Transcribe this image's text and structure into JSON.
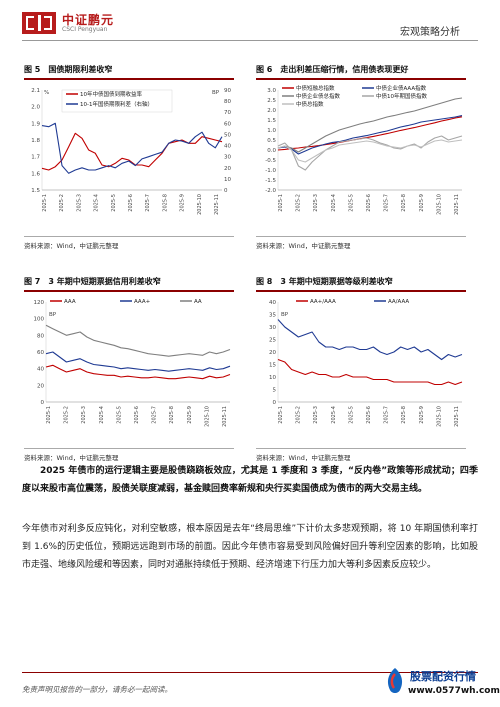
{
  "header": {
    "brand_cn": "中证鹏元",
    "brand_en": "CSCI Pengyuan",
    "section": "宏观策略分析"
  },
  "figures": [
    {
      "num": "图 5",
      "title": "国债期限利差收窄",
      "source": "资料来源：Wind，中证鹏元整理",
      "chart_data": {
        "type": "line",
        "x_ticks": [
          "2025-1",
          "2025-2",
          "2025-3",
          "2025-4",
          "2025-5",
          "2025-6",
          "2025-7",
          "2025-8",
          "2025-9",
          "2025-10",
          "2025-11"
        ],
        "left_unit": "%",
        "right_unit": "BP",
        "ylim_left": [
          1.5,
          2.1
        ],
        "ylim_right": [
          0,
          90
        ],
        "yticks_left": [
          "2.1",
          "2.0",
          "1.9",
          "1.8",
          "1.7",
          "1.6",
          "1.5"
        ],
        "yticks_right": [
          "90",
          "80",
          "70",
          "60",
          "50",
          "40",
          "30",
          "20",
          "10",
          "0"
        ],
        "series": [
          {
            "name": "10年中债国债到期收益率",
            "axis": "left",
            "color": "#c00000",
            "values": [
              1.63,
              1.62,
              1.64,
              1.68,
              1.76,
              1.84,
              1.81,
              1.74,
              1.72,
              1.65,
              1.64,
              1.66,
              1.69,
              1.68,
              1.65,
              1.65,
              1.64,
              1.68,
              1.72,
              1.78,
              1.79,
              1.8,
              1.78,
              1.78,
              1.82,
              1.81,
              1.8,
              1.79
            ]
          },
          {
            "name": "10-1年国债期限利差（右轴）",
            "axis": "right",
            "color": "#1f3a93",
            "values": [
              58,
              57,
              60,
              22,
              15,
              18,
              20,
              18,
              18,
              20,
              22,
              20,
              24,
              26,
              22,
              28,
              30,
              32,
              34,
              42,
              45,
              44,
              42,
              48,
              52,
              42,
              38,
              48
            ]
          }
        ]
      }
    },
    {
      "num": "图 6",
      "title": "走出利差压缩行情，信用债表现更好",
      "source": "资料来源：Wind，中证鹏元整理",
      "chart_data": {
        "type": "line",
        "x_ticks": [
          "2025-1",
          "2025-2",
          "2025-3",
          "2025-4",
          "2025-5",
          "2025-6",
          "2025-7",
          "2025-8",
          "2025-9",
          "2025-10",
          "2025-11"
        ],
        "ylim": [
          -2.0,
          3.0
        ],
        "yticks": [
          "3.0",
          "2.5",
          "2.0",
          "1.5",
          "1.0",
          "0.5",
          "0.0",
          "-0.5",
          "-1.0",
          "-1.5",
          "-2.0"
        ],
        "series": [
          {
            "name": "中债短融总指数",
            "color": "#c00000",
            "values": [
              0.0,
              0.03,
              0.07,
              0.1,
              0.15,
              0.18,
              0.22,
              0.27,
              0.32,
              0.38,
              0.44,
              0.5,
              0.56,
              0.62,
              0.68,
              0.75,
              0.82,
              0.9,
              0.98,
              1.05,
              1.12,
              1.2,
              1.28,
              1.36,
              1.45,
              1.52,
              1.6,
              1.66
            ]
          },
          {
            "name": "中债企业债AAA指数",
            "color": "#1f3a93",
            "values": [
              0.1,
              0.15,
              0.05,
              -0.2,
              -0.05,
              0.1,
              0.2,
              0.3,
              0.38,
              0.42,
              0.5,
              0.6,
              0.66,
              0.72,
              0.8,
              0.88,
              0.95,
              1.05,
              1.15,
              1.22,
              1.3,
              1.4,
              1.45,
              1.5,
              1.55,
              1.6,
              1.65,
              1.72
            ]
          },
          {
            "name": "中债企业债总指数",
            "color": "#7f7f7f",
            "values": [
              0.1,
              0.2,
              0.1,
              -0.1,
              0.1,
              0.3,
              0.5,
              0.7,
              0.85,
              1.0,
              1.1,
              1.2,
              1.3,
              1.38,
              1.45,
              1.55,
              1.65,
              1.72,
              1.8,
              1.88,
              1.95,
              2.05,
              2.15,
              2.25,
              2.35,
              2.45,
              2.55,
              2.6
            ]
          },
          {
            "name": "中债10年期国债指数",
            "color": "#a6a6a6",
            "values": [
              0.2,
              0.35,
              0.0,
              -0.8,
              -1.0,
              -0.6,
              -0.3,
              0.0,
              0.2,
              0.4,
              0.45,
              0.5,
              0.55,
              0.6,
              0.5,
              0.35,
              0.25,
              0.1,
              0.05,
              0.2,
              0.3,
              0.1,
              0.4,
              0.6,
              0.7,
              0.5,
              0.6,
              0.7
            ]
          },
          {
            "name": "中债总指数",
            "color": "#bfbfbf",
            "values": [
              0.1,
              0.2,
              0.0,
              -0.5,
              -0.6,
              -0.4,
              -0.2,
              0.0,
              0.1,
              0.25,
              0.3,
              0.35,
              0.4,
              0.45,
              0.4,
              0.3,
              0.2,
              0.15,
              0.1,
              0.2,
              0.25,
              0.15,
              0.3,
              0.45,
              0.5,
              0.4,
              0.45,
              0.5
            ]
          }
        ]
      }
    },
    {
      "num": "图 7",
      "title": "3 年期中短期票据信用利差收窄",
      "source": "资料来源：Wind，中证鹏元整理",
      "chart_data": {
        "type": "line",
        "x_ticks": [
          "2025-1",
          "2025-2",
          "2025-3",
          "2025-4",
          "2025-5",
          "2025-6",
          "2025-7",
          "2025-8",
          "2025-9",
          "2025-10",
          "2025-11"
        ],
        "unit": "BP",
        "ylim": [
          0,
          120
        ],
        "yticks": [
          "120",
          "100",
          "80",
          "60",
          "40",
          "20",
          "0"
        ],
        "series": [
          {
            "name": "AAA",
            "color": "#c00000",
            "values": [
              42,
              44,
              40,
              36,
              38,
              40,
              36,
              34,
              33,
              32,
              32,
              30,
              31,
              30,
              29,
              29,
              30,
              29,
              28,
              28,
              29,
              30,
              29,
              28,
              31,
              29,
              30,
              33
            ]
          },
          {
            "name": "AAA+",
            "color": "#1f3a93",
            "values": [
              58,
              60,
              54,
              48,
              50,
              52,
              48,
              45,
              44,
              43,
              42,
              40,
              41,
              40,
              39,
              38,
              39,
              38,
              37,
              38,
              39,
              40,
              39,
              38,
              41,
              39,
              40,
              43
            ]
          },
          {
            "name": "AA",
            "color": "#7f7f7f",
            "values": [
              92,
              88,
              84,
              80,
              82,
              84,
              78,
              74,
              72,
              70,
              68,
              65,
              64,
              62,
              60,
              58,
              57,
              56,
              55,
              56,
              57,
              58,
              57,
              56,
              60,
              58,
              60,
              63
            ]
          }
        ]
      }
    },
    {
      "num": "图 8",
      "title": "3 年期中短期票据等级利差收窄",
      "source": "资料来源：Wind，中证鹏元整理",
      "chart_data": {
        "type": "line",
        "x_ticks": [
          "2025-1",
          "2025-2",
          "2025-3",
          "2025-4",
          "2025-5",
          "2025-6",
          "2025-7",
          "2025-8",
          "2025-9",
          "2025-10",
          "2025-11"
        ],
        "unit": "BP",
        "ylim": [
          0,
          40
        ],
        "yticks": [
          "40",
          "35",
          "30",
          "25",
          "20",
          "15",
          "10",
          "5",
          "0"
        ],
        "series": [
          {
            "name": "AA+/AAA",
            "color": "#c00000",
            "values": [
              17,
              16,
              13,
              12,
              11,
              12,
              11,
              11,
              10,
              10,
              11,
              10,
              10,
              10,
              9,
              9,
              9,
              8,
              8,
              8,
              8,
              8,
              8,
              7,
              7,
              8,
              7,
              8
            ]
          },
          {
            "name": "AA/AAA",
            "color": "#1f3a93",
            "values": [
              33,
              30,
              28,
              26,
              27,
              28,
              24,
              22,
              22,
              21,
              22,
              22,
              21,
              21,
              22,
              20,
              19,
              20,
              22,
              21,
              22,
              20,
              21,
              19,
              17,
              19,
              18,
              19
            ]
          }
        ]
      }
    }
  ],
  "paragraphs": [
    {
      "bold": "2025 年债市的运行逻辑主要是股债跷跷板效应，尤其是 1 季度和 3 季度，“反内卷”政策等形成扰动；四季度以来股市高位震荡，股债关联度减弱，基金赎回费率新规和央行买卖国债成为债市的两大交易主线。",
      "text": ""
    },
    {
      "bold": "",
      "text": "今年债市对利多反应钝化，对利空敏感，根本原因是去年“终局思维”下计价太多悲观预期，将 10 年期国债利率打到 1.6%的历史低位，预期远远跑到市场的前面。因此今年债市容易受到风险偏好回升等利空因素的影响，比如股市走强、地缘风险缓和等因素，同时对通胀持续低于预期、经济增速下行压力加大等利多因素反应较少。"
    }
  ],
  "footer": {
    "disclaimer": "免责声明见报告的一部分，请务必一起阅读。",
    "watermark_line1": "股票配资行情",
    "watermark_line2": "www.0577wh.com"
  }
}
